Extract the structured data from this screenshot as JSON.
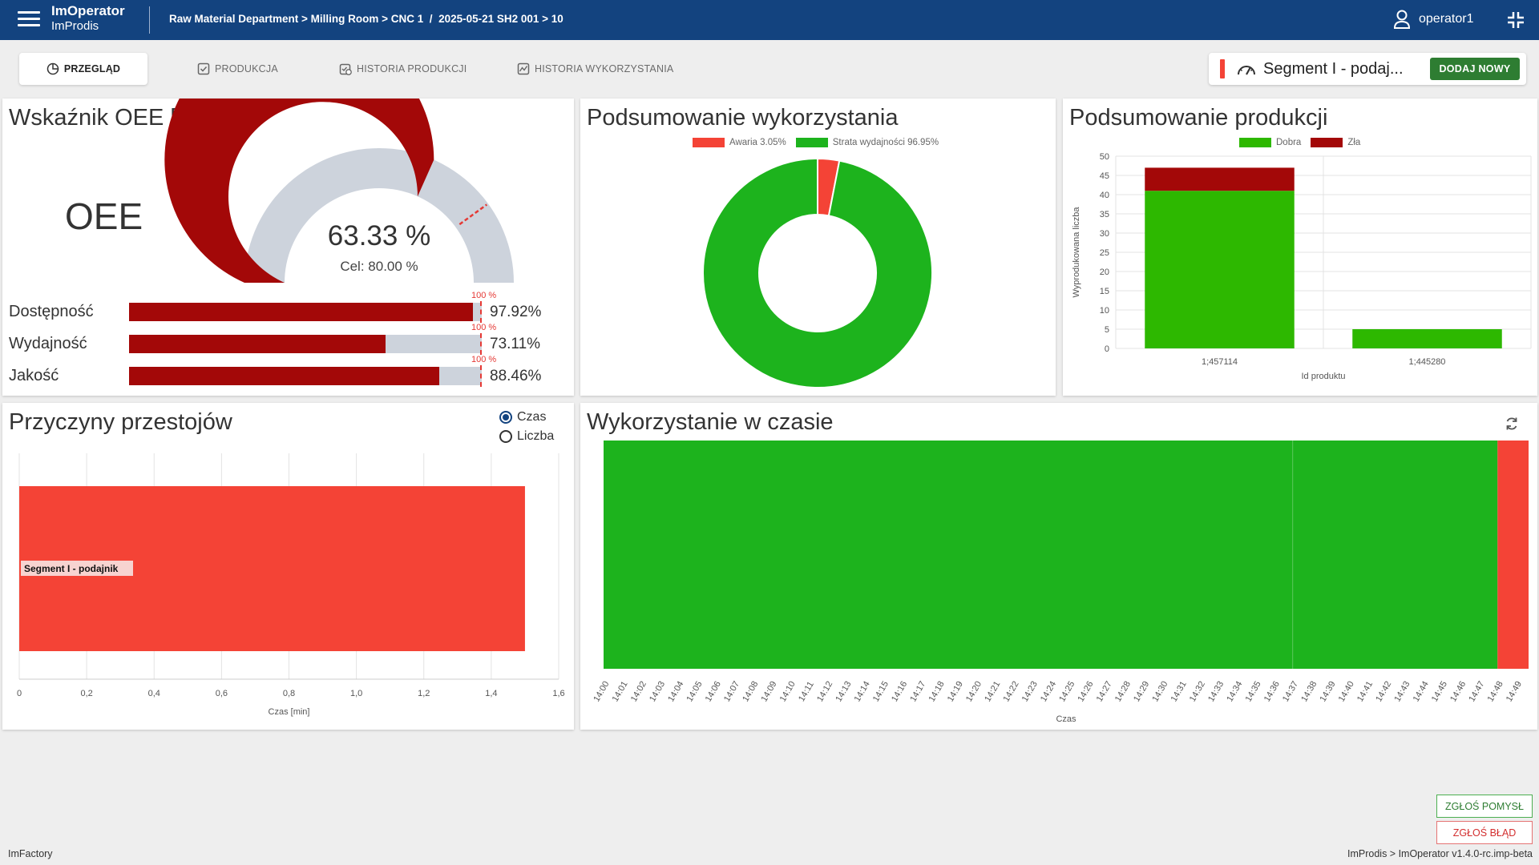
{
  "header": {
    "app_name": "ImOperator",
    "app_sub": "ImProdis",
    "breadcrumb": "Raw Material Department > Milling Room > CNC 1  /  2025-05-21 SH2 001 > 10",
    "username": "operator1"
  },
  "tabs": [
    {
      "label": "PRZEGLĄD",
      "icon": "pie-chart-icon",
      "active": true
    },
    {
      "label": "PRODUKCJA",
      "icon": "checkbox-icon",
      "active": false
    },
    {
      "label": "HISTORIA PRODUKCJI",
      "icon": "history-check-icon",
      "active": false
    },
    {
      "label": "HISTORIA WYKORZYSTANIA",
      "icon": "chart-box-icon",
      "active": false
    }
  ],
  "segment": {
    "label": "Segment I - podaj...",
    "add_button": "DODAJ NOWY",
    "status_color": "#f44336"
  },
  "oee_card": {
    "title": "Wskaźnik OEE [%]",
    "label": "OEE",
    "value_text": "63.33 %",
    "target_text": "Cel: 80.00 %",
    "value": 63.33,
    "target": 80.0,
    "metrics": [
      {
        "label": "Dostępność",
        "value": 97.92,
        "value_text": "97.92%",
        "target_text": "100 %"
      },
      {
        "label": "Wydajność",
        "value": 73.11,
        "value_text": "73.11%",
        "target_text": "100 %"
      },
      {
        "label": "Jakość",
        "value": 88.46,
        "value_text": "88.46%",
        "target_text": "100 %"
      }
    ]
  },
  "usage_summary": {
    "title": "Podsumowanie wykorzystania",
    "chart_data": {
      "type": "pie",
      "series": [
        {
          "name": "Awaria",
          "value": 3.05,
          "legend": "Awaria 3.05%",
          "color": "#f44336"
        },
        {
          "name": "Strata wydajności",
          "value": 96.95,
          "legend": "Strata wydajności 96.95%",
          "color": "#1db31d"
        }
      ]
    }
  },
  "production_summary": {
    "title": "Podsumowanie produkcji",
    "chart_data": {
      "type": "bar",
      "stacked": true,
      "categories": [
        "1;457114",
        "1;445280"
      ],
      "series": [
        {
          "name": "Dobra",
          "values": [
            41,
            5
          ],
          "color": "#2db800"
        },
        {
          "name": "Zła",
          "values": [
            6,
            0
          ],
          "color": "#a30808"
        }
      ],
      "xlabel": "Id produktu",
      "ylabel": "Wyprodukowana liczba",
      "ylim": [
        0,
        50
      ],
      "yticks": [
        "0",
        "5",
        "10",
        "15",
        "20",
        "25",
        "30",
        "35",
        "40",
        "45",
        "50"
      ],
      "grid": true,
      "legend": "top"
    }
  },
  "downtime": {
    "title": "Przyczyny przestojów",
    "radio": [
      {
        "label": "Czas",
        "checked": true
      },
      {
        "label": "Liczba",
        "checked": false
      }
    ],
    "chart_data": {
      "type": "bar",
      "orientation": "horizontal",
      "categories": [
        "Segment I - podajnik"
      ],
      "values": [
        1.5
      ],
      "xlabel": "Czas [min]",
      "xlim": [
        0,
        1.6
      ],
      "xticks": [
        "0",
        "0,2",
        "0,4",
        "0,6",
        "0,8",
        "1,0",
        "1,2",
        "1,4",
        "1,6"
      ],
      "color": "#f44336"
    }
  },
  "timeline": {
    "title": "Wykorzystanie w czasie",
    "chart_data": {
      "type": "area",
      "xlabel": "Czas",
      "xticks": [
        "14:00",
        "14:01",
        "14:02",
        "14:03",
        "14:04",
        "14:05",
        "14:06",
        "14:07",
        "14:08",
        "14:09",
        "14:10",
        "14:11",
        "14:12",
        "14:13",
        "14:14",
        "14:15",
        "14:16",
        "14:17",
        "14:18",
        "14:19",
        "14:20",
        "14:21",
        "14:22",
        "14:23",
        "14:24",
        "14:25",
        "14:26",
        "14:27",
        "14:28",
        "14:29",
        "14:30",
        "14:31",
        "14:32",
        "14:33",
        "14:34",
        "14:35",
        "14:36",
        "14:37",
        "14:38",
        "14:39",
        "14:40",
        "14:41",
        "14:42",
        "14:43",
        "14:44",
        "14:45",
        "14:46",
        "14:47",
        "14:48",
        "14:49"
      ],
      "segments": [
        {
          "state": "Strata wydajności",
          "start": "14:00",
          "end": "14:37",
          "color": "#1db31d"
        },
        {
          "state": "Strata wydajności",
          "start": "14:37",
          "end": "14:48",
          "color": "#1db31d"
        },
        {
          "state": "Awaria",
          "start": "14:48",
          "end": "14:49:40",
          "color": "#f44336"
        }
      ]
    }
  },
  "buttons": {
    "idea": "ZGŁOŚ POMYSŁ",
    "bug": "ZGŁOŚ BŁĄD"
  },
  "footer": {
    "left": "ImFactory",
    "right": "ImProdis > ImOperator v1.4.0-rc.imp-beta"
  }
}
